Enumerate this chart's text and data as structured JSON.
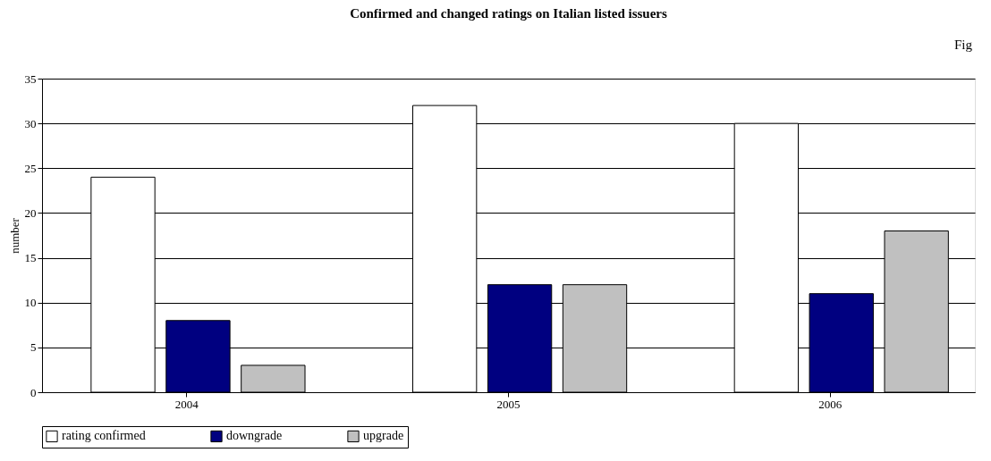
{
  "chart_data": {
    "type": "bar",
    "title": "Confirmed and changed ratings on Italian listed issuers",
    "ylabel": "number",
    "categories": [
      "2004",
      "2005",
      "2006"
    ],
    "series": [
      {
        "name": "rating confirmed",
        "color": "#ffffff",
        "values": [
          24,
          32,
          30
        ]
      },
      {
        "name": "downgrade",
        "color": "#000080",
        "values": [
          8,
          12,
          11
        ]
      },
      {
        "name": "upgrade",
        "color": "#c0c0c0",
        "values": [
          3,
          12,
          18
        ]
      }
    ],
    "ylim": [
      0,
      35
    ],
    "yticks": [
      0,
      5,
      10,
      15,
      20,
      25,
      30,
      35
    ],
    "grid": "y",
    "legend": "bottom",
    "annotations": [
      "Fig"
    ]
  }
}
